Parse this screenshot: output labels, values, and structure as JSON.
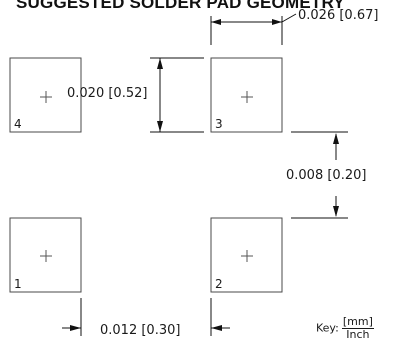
{
  "title": "SUGGESTED SOLDER PAD GEOMETRY",
  "pads": [
    {
      "number": "4"
    },
    {
      "number": "3"
    },
    {
      "number": "1"
    },
    {
      "number": "2"
    }
  ],
  "dimensions": {
    "pad_width": "0.026 [0.67]",
    "pad_height": "0.020 [0.52]",
    "vertical_gap": "0.008 [0.20]",
    "horizontal_gap": "0.012 [0.30]"
  },
  "key": {
    "label": "Key:",
    "numerator": "[mm]",
    "denominator": "Inch"
  }
}
